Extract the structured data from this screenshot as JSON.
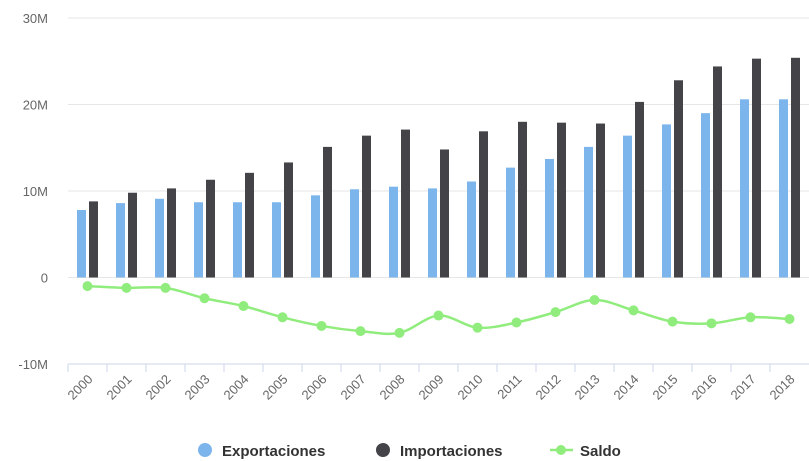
{
  "chart_data": {
    "type": "bar",
    "categories": [
      "2000",
      "2001",
      "2002",
      "2003",
      "2004",
      "2005",
      "2006",
      "2007",
      "2008",
      "2009",
      "2010",
      "2011",
      "2012",
      "2013",
      "2014",
      "2015",
      "2016",
      "2017",
      "2018"
    ],
    "series": [
      {
        "name": "Exportaciones",
        "type": "bar",
        "color": "#7cb5ec",
        "values": [
          7.8,
          8.6,
          9.1,
          8.7,
          8.7,
          8.7,
          9.5,
          10.2,
          10.5,
          10.3,
          11.1,
          12.7,
          13.7,
          15.1,
          16.4,
          17.7,
          19.0,
          20.6,
          20.6
        ]
      },
      {
        "name": "Importaciones",
        "type": "bar",
        "color": "#434348",
        "values": [
          8.8,
          9.8,
          10.3,
          11.3,
          12.1,
          13.3,
          15.1,
          16.4,
          17.1,
          14.8,
          16.9,
          18.0,
          17.9,
          17.8,
          20.3,
          22.8,
          24.4,
          25.3,
          25.4
        ]
      },
      {
        "name": "Saldo",
        "type": "line",
        "color": "#90ed7d",
        "values": [
          -1.0,
          -1.2,
          -1.2,
          -2.4,
          -3.3,
          -4.6,
          -5.6,
          -6.2,
          -6.4,
          -4.4,
          -5.8,
          -5.2,
          -4.0,
          -2.6,
          -3.8,
          -5.1,
          -5.3,
          -4.6,
          -4.8
        ]
      }
    ],
    "yticks": [
      "30M",
      "20M",
      "10M",
      "0",
      "-10M"
    ],
    "ytick_values": [
      30,
      20,
      10,
      0,
      -10
    ],
    "ylim": [
      -10,
      30
    ],
    "grid": true,
    "legend_position": "bottom-center"
  },
  "legend": {
    "exportaciones": "Exportaciones",
    "importaciones": "Importaciones",
    "saldo": "Saldo"
  }
}
